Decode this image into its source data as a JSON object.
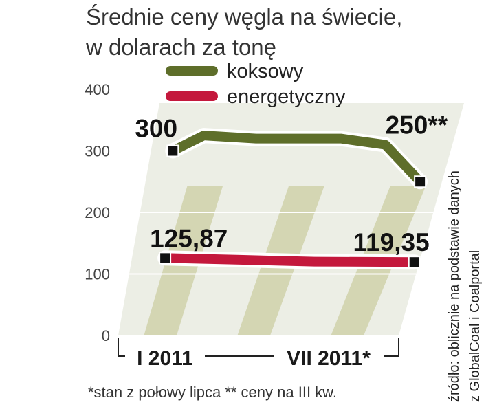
{
  "title_line1": "Średnie ceny węgla na świecie,",
  "title_line2": "w dolarach za tonę",
  "legend": [
    {
      "label": "koksowy",
      "color": "#5e6e2a"
    },
    {
      "label": "energetyczny",
      "color": "#c4183c"
    }
  ],
  "footnote": "*stan z połowy lipca  ** ceny na III kw.",
  "source": [
    "źródło: oblicznie na podstawie danych",
    "z GlobalCoal i Coalportal"
  ],
  "chart_data": {
    "type": "line",
    "x_labels": [
      "I 2011",
      "VII 2011*"
    ],
    "ylim": [
      0,
      400
    ],
    "yticks": [
      0,
      100,
      200,
      300,
      400
    ],
    "series": [
      {
        "name": "koksowy",
        "color": "#5e6e2a",
        "x": [
          0,
          0.12,
          0.33,
          0.67,
          0.85,
          1
        ],
        "y": [
          300,
          325,
          320,
          320,
          310,
          250
        ],
        "start_label": "300",
        "end_label": "250**"
      },
      {
        "name": "energetyczny",
        "color": "#c4183c",
        "x": [
          0,
          0.3,
          0.6,
          1
        ],
        "y": [
          125.87,
          123,
          120,
          119.35
        ],
        "start_label": "125,87",
        "end_label": "119,35"
      }
    ]
  }
}
